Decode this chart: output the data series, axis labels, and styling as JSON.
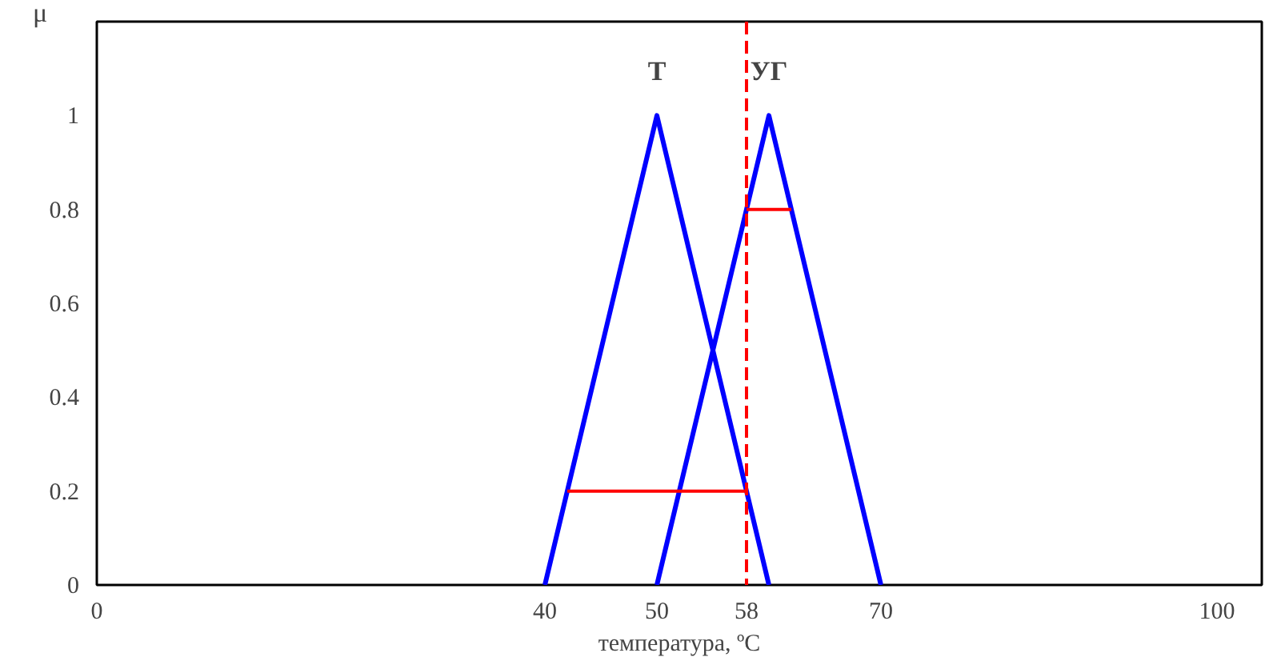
{
  "chart_data": {
    "type": "line",
    "xlabel": "температура, ºC",
    "ylabel": "μ",
    "series": [
      {
        "name": "Т",
        "color": "#0000ff",
        "x": [
          40,
          50,
          60
        ],
        "values": [
          0,
          1,
          0
        ]
      },
      {
        "name": "УГ",
        "color": "#0000ff",
        "x": [
          50,
          60,
          70
        ],
        "values": [
          0,
          1,
          0
        ]
      },
      {
        "color": "#ff0000",
        "x": [
          42,
          58
        ],
        "values": [
          0.2,
          0.2
        ]
      },
      {
        "color": "#ff0000",
        "x": [
          58,
          62
        ],
        "values": [
          0.8,
          0.8
        ]
      }
    ],
    "ref_lines": [
      {
        "axis": "x",
        "value": 58,
        "color": "#ff0000",
        "line_style": "dashed"
      }
    ],
    "xlim": [
      0,
      104
    ],
    "xticks": [
      0,
      40,
      50,
      58,
      70,
      100
    ],
    "ylim": [
      0,
      1.2
    ],
    "yticks": [
      0,
      0.2,
      0.4,
      0.6,
      0.8,
      1
    ],
    "grid": false
  }
}
